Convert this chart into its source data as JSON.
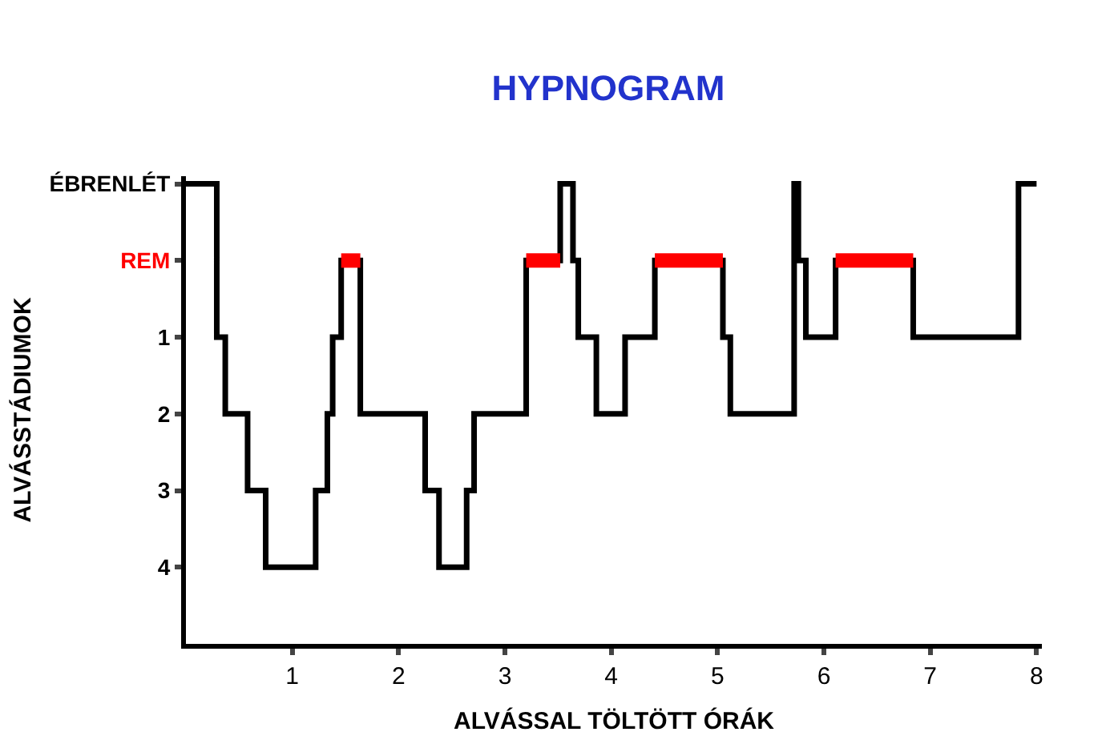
{
  "chart_data": {
    "type": "step",
    "title": "HYPNOGRAM",
    "xlabel": "ALVÁSSAL TÖLTÖTT ÓRÁK",
    "ylabel": "ALVÁSSTÁDIUMOK",
    "series": [
      {
        "color": "#000000",
        "x": [
          0,
          0.29,
          0.37,
          0.58,
          0.75,
          1.22,
          1.33,
          1.38,
          1.46,
          1.64,
          2.25,
          2.38,
          2.64,
          2.71,
          3.2,
          3.52,
          3.64,
          3.69,
          3.86,
          4.13,
          4.41,
          5.05,
          5.12,
          5.72,
          5.76,
          5.83,
          6.11,
          6.84,
          7.83,
          8.0
        ],
        "values": [
          -1,
          1,
          2,
          3,
          4,
          3,
          2,
          1,
          0,
          2,
          3,
          4,
          3,
          2,
          0,
          -1,
          0,
          1,
          2,
          1,
          0,
          1,
          2,
          -1,
          0,
          1,
          0,
          1,
          -1,
          -1
        ]
      },
      {
        "color": "#ff0000",
        "x": [
          1.46,
          1.64
        ],
        "values": [
          0,
          0
        ]
      },
      {
        "color": "#ff0000",
        "x": [
          3.2,
          3.52
        ],
        "values": [
          0,
          0
        ]
      },
      {
        "color": "#ff0000",
        "x": [
          4.41,
          5.05
        ],
        "values": [
          0,
          0
        ]
      },
      {
        "color": "#ff0000",
        "x": [
          6.11,
          6.84
        ],
        "values": [
          0,
          0
        ]
      }
    ],
    "xlim": [
      0,
      8.05
    ],
    "xticks": [
      1,
      2,
      3,
      4,
      5,
      6,
      7,
      8
    ],
    "ylim": [
      5,
      -1.1
    ],
    "yticks": [
      {
        "value": -1,
        "label": "ÉBRENLÉT"
      },
      {
        "value": 0,
        "label": "REM"
      },
      1,
      2,
      3,
      4
    ],
    "marker": "none",
    "line_style": "solid"
  }
}
